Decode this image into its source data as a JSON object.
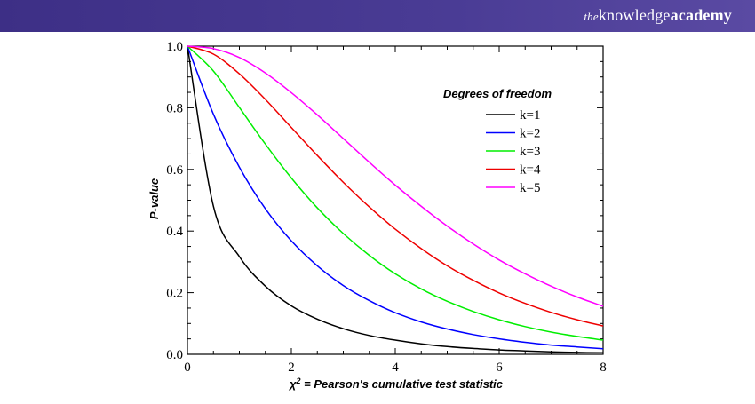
{
  "brand": {
    "prefix": "the",
    "knowledge": "knowledge",
    "academy": "academy"
  },
  "chart_data": {
    "type": "line",
    "xlabel_symbol": "χ",
    "xlabel_sup": "2",
    "xlabel_rest": " = Pearson's cumulative test statistic",
    "ylabel": "P-value",
    "xlim": [
      0,
      8
    ],
    "ylim": [
      0,
      1
    ],
    "x_ticks": [
      "0",
      "2",
      "4",
      "6",
      "8"
    ],
    "y_ticks": [
      "0.0",
      "0.2",
      "0.4",
      "0.6",
      "0.8",
      "1.0"
    ],
    "legend_title": "Degrees of freedom",
    "legend_position": "top-right",
    "grid": false,
    "x": [
      0,
      0.5,
      1,
      1.5,
      2,
      2.5,
      3,
      3.5,
      4,
      4.5,
      5,
      5.5,
      6,
      6.5,
      7,
      7.5,
      8
    ],
    "series": [
      {
        "name": "k=1",
        "color": "#000000",
        "values": [
          1.0,
          0.48,
          0.317,
          0.221,
          0.157,
          0.114,
          0.083,
          0.061,
          0.046,
          0.034,
          0.025,
          0.019,
          0.014,
          0.011,
          0.008,
          0.006,
          0.005
        ]
      },
      {
        "name": "k=2",
        "color": "#0000ff",
        "values": [
          1.0,
          0.779,
          0.607,
          0.472,
          0.368,
          0.287,
          0.223,
          0.174,
          0.135,
          0.105,
          0.082,
          0.064,
          0.05,
          0.039,
          0.03,
          0.024,
          0.018
        ]
      },
      {
        "name": "k=3",
        "color": "#00ee00",
        "values": [
          1.0,
          0.919,
          0.801,
          0.682,
          0.572,
          0.475,
          0.392,
          0.321,
          0.261,
          0.212,
          0.172,
          0.139,
          0.112,
          0.09,
          0.072,
          0.058,
          0.046
        ]
      },
      {
        "name": "k=4",
        "color": "#ee0000",
        "values": [
          1.0,
          0.974,
          0.91,
          0.827,
          0.736,
          0.645,
          0.558,
          0.478,
          0.406,
          0.343,
          0.287,
          0.24,
          0.199,
          0.165,
          0.136,
          0.112,
          0.092
        ]
      },
      {
        "name": "k=5",
        "color": "#ff00ff",
        "values": [
          1.0,
          0.992,
          0.963,
          0.913,
          0.849,
          0.777,
          0.7,
          0.623,
          0.549,
          0.48,
          0.416,
          0.358,
          0.306,
          0.261,
          0.221,
          0.186,
          0.156
        ]
      }
    ]
  }
}
